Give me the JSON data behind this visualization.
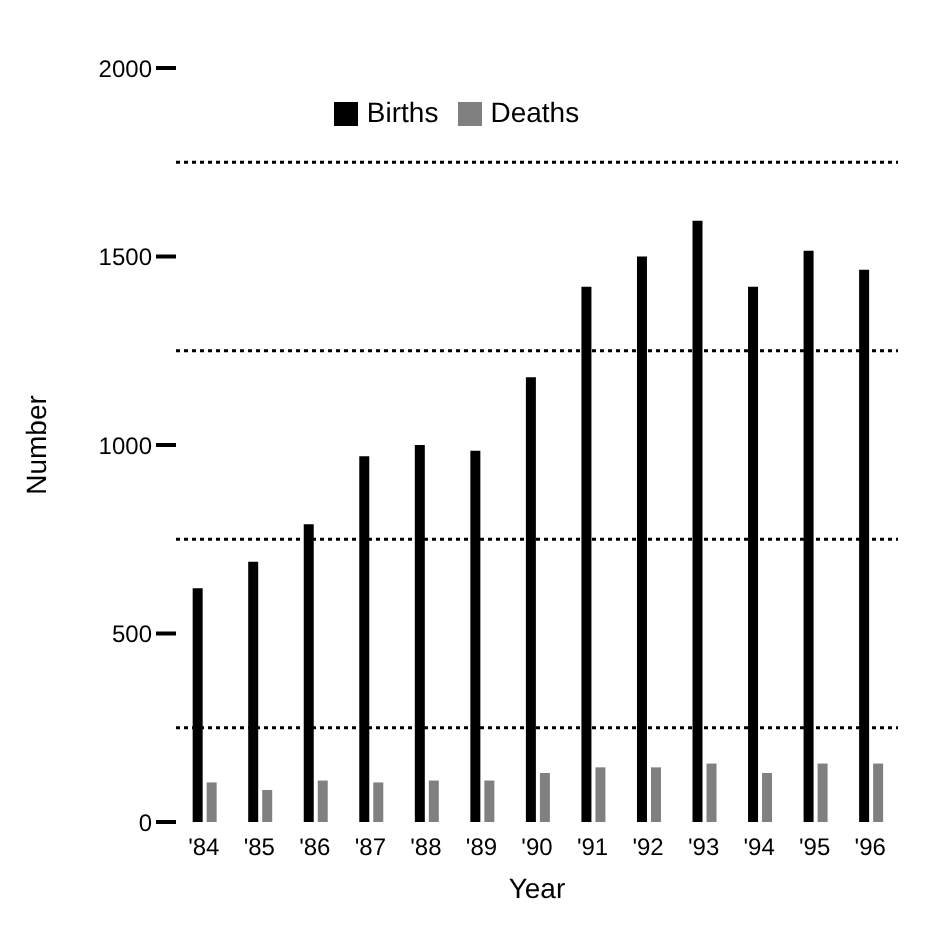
{
  "chart_data": {
    "type": "bar",
    "xlabel": "Year",
    "ylabel": "Number",
    "categories": [
      "'84",
      "'85",
      "'86",
      "'87",
      "'88",
      "'89",
      "'90",
      "'91",
      "'92",
      "'93",
      "'94",
      "'95",
      "'96"
    ],
    "series": [
      {
        "name": "Births",
        "color": "#000000",
        "values": [
          620,
          690,
          790,
          970,
          1000,
          985,
          1180,
          1420,
          1500,
          1595,
          1420,
          1515,
          1465
        ]
      },
      {
        "name": "Deaths",
        "color": "#808080",
        "values": [
          105,
          85,
          110,
          105,
          110,
          110,
          130,
          145,
          145,
          155,
          130,
          155,
          155
        ]
      }
    ],
    "ylim": [
      0,
      2000
    ],
    "yticks": [
      0,
      500,
      1000,
      1500,
      2000
    ],
    "ref_lines": [
      {
        "axis": "y",
        "value": 250,
        "color": "#000000",
        "line_style": "dotted"
      },
      {
        "axis": "y",
        "value": 750,
        "color": "#000000",
        "line_style": "dotted"
      },
      {
        "axis": "y",
        "value": 1250,
        "color": "#000000",
        "line_style": "dotted"
      },
      {
        "axis": "y",
        "value": 1750,
        "color": "#000000",
        "line_style": "dotted"
      }
    ],
    "legend": "top"
  }
}
